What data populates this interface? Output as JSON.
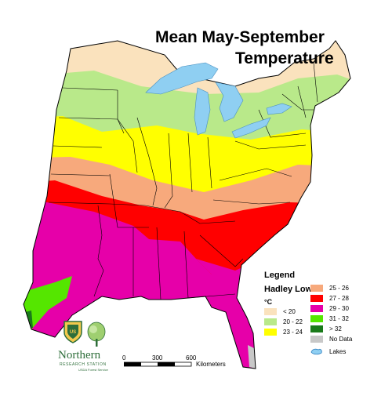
{
  "title_line1": "Mean May-September",
  "title_line2": "Temperature",
  "legend": {
    "heading": "Legend",
    "model": "Hadley Low",
    "unit": "°C",
    "classes": [
      {
        "label": "< 20",
        "color": "#fae2bd"
      },
      {
        "label": "20 - 22",
        "color": "#b9e98a"
      },
      {
        "label": "23 - 24",
        "color": "#ffff00"
      },
      {
        "label": "25 - 26",
        "color": "#f7a97c"
      },
      {
        "label": "27 - 28",
        "color": "#ff0000"
      },
      {
        "label": "29 - 30",
        "color": "#e600a9"
      },
      {
        "label": "31 - 32",
        "color": "#55e600"
      },
      {
        "label": "> 32",
        "color": "#1a7a1a"
      },
      {
        "label": "No Data",
        "color": "#c8c8c8"
      },
      {
        "label": "Lakes",
        "color": "#8fcff2"
      }
    ]
  },
  "scale": {
    "ticks": [
      "0",
      "300",
      "600"
    ],
    "unit": "Kilometers"
  },
  "logo": {
    "name": "Northern",
    "subtitle": "RESEARCH STATION",
    "agency": "USDA Forest Service",
    "badge_text": "US"
  }
}
